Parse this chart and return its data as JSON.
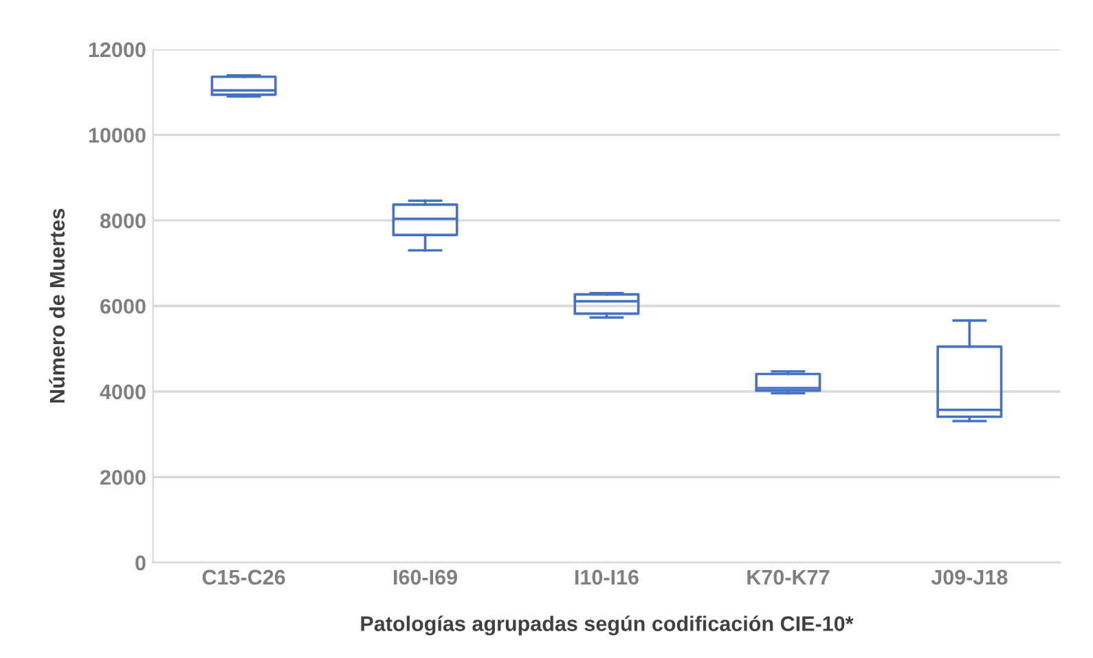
{
  "chart_data": {
    "type": "box",
    "xlabel": "Patologías agrupadas según codificación CIE-10*",
    "ylabel": "Número de Muertes",
    "categories": [
      "C15-C26",
      "I60-I69",
      "I10-I16",
      "K70-K77",
      "J09-J18"
    ],
    "color": "#4472c4",
    "boxes": [
      {
        "low": 10900,
        "q1": 10940,
        "median": 11040,
        "q3": 11360,
        "high": 11390
      },
      {
        "low": 7300,
        "q1": 7660,
        "median": 8040,
        "q3": 8370,
        "high": 8460
      },
      {
        "low": 5730,
        "q1": 5820,
        "median": 6110,
        "q3": 6270,
        "high": 6300
      },
      {
        "low": 3960,
        "q1": 4020,
        "median": 4080,
        "q3": 4410,
        "high": 4470
      },
      {
        "low": 3310,
        "q1": 3410,
        "median": 3570,
        "q3": 5050,
        "high": 5660
      }
    ],
    "ylim": [
      0,
      12000
    ],
    "yticks": [
      0,
      2000,
      4000,
      6000,
      8000,
      10000,
      12000
    ],
    "grid": "y"
  }
}
